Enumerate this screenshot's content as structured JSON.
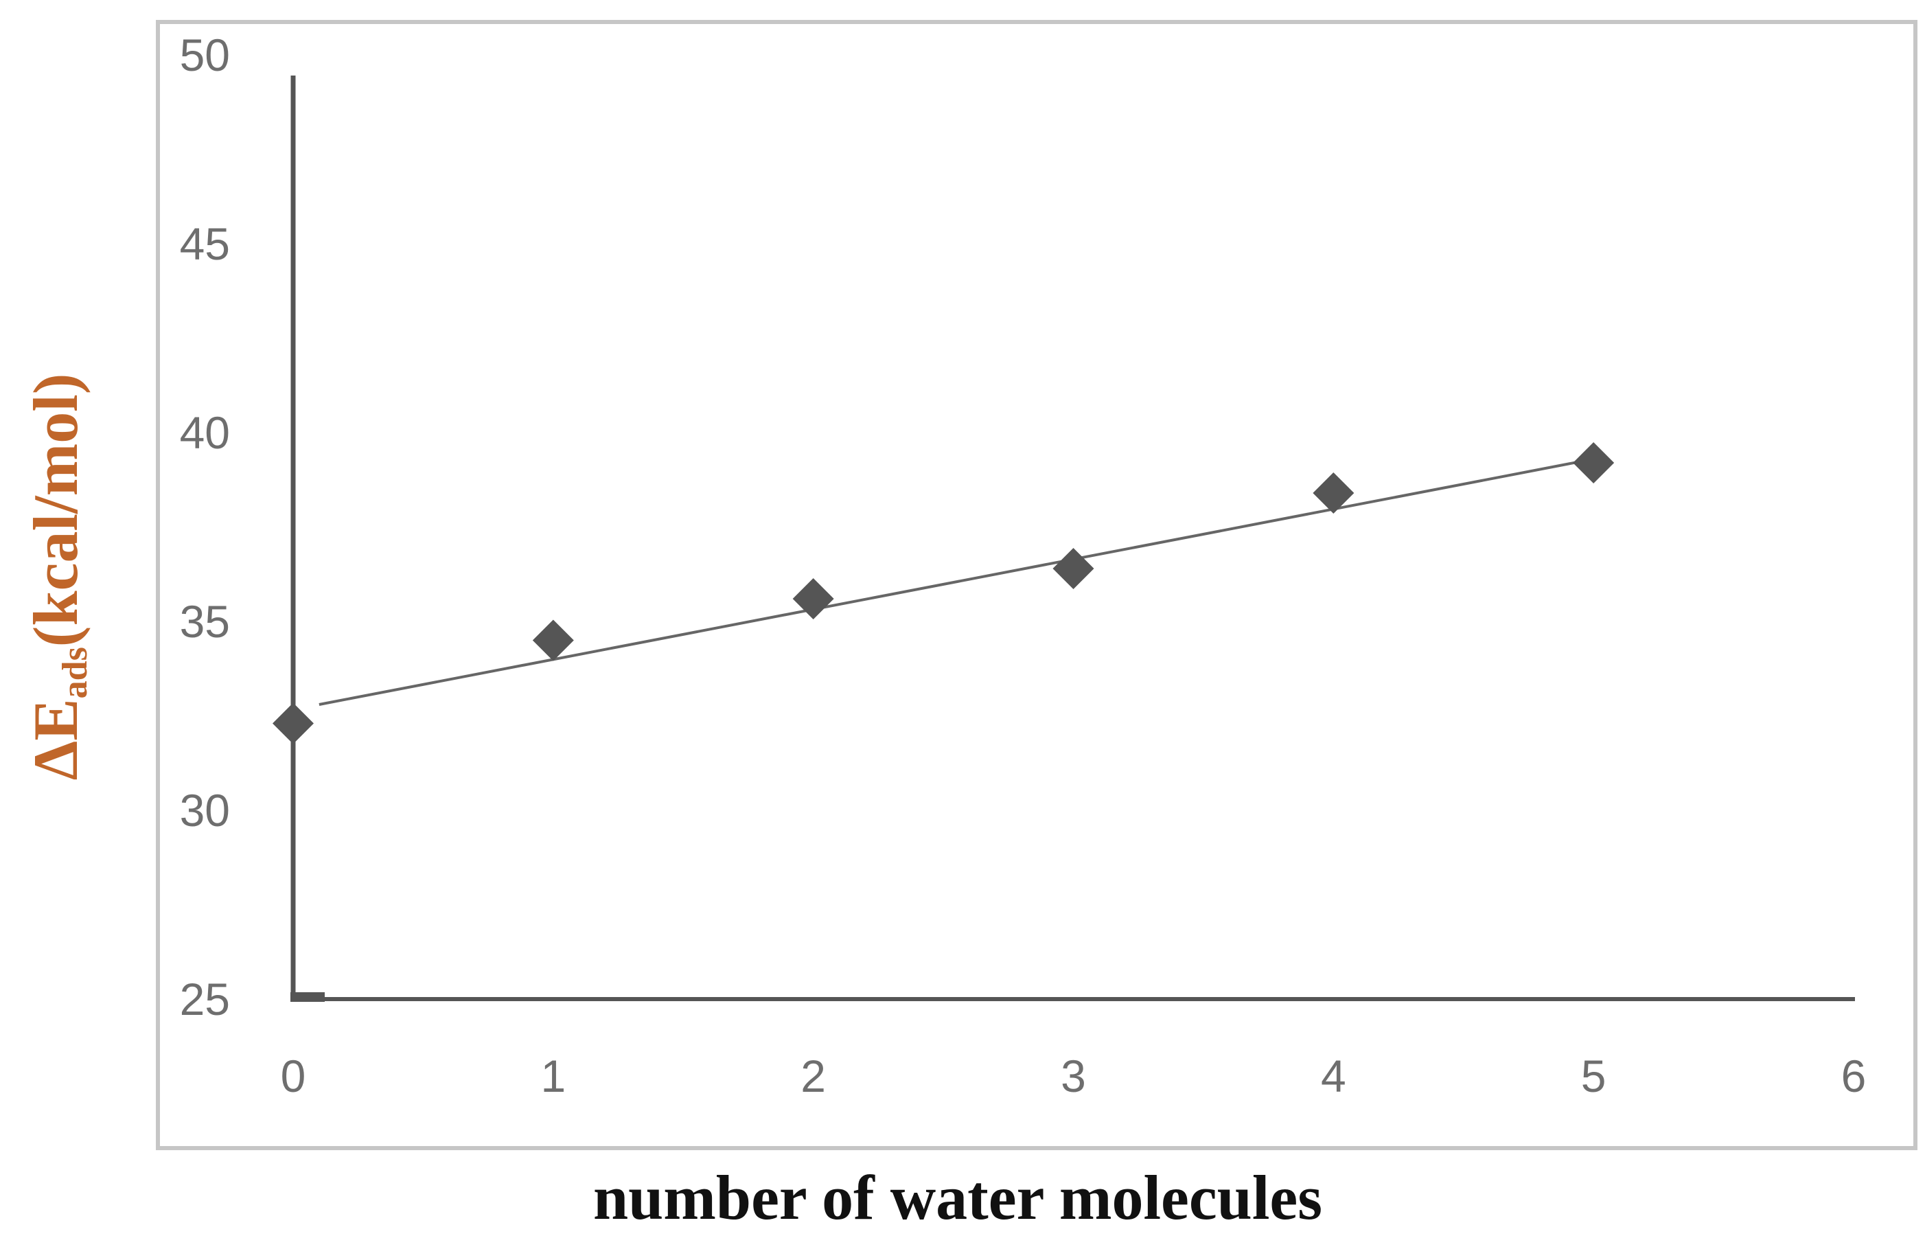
{
  "chart_data": {
    "type": "scatter",
    "title": "",
    "xlabel": "number of water molecules",
    "ylabel": {
      "prefix": "ΔE",
      "subscript": "ads",
      "suffix": "(kcal/mol)"
    },
    "xlim": [
      0,
      6
    ],
    "ylim": [
      25,
      50
    ],
    "x_ticks": [
      "0",
      "1",
      "2",
      "3",
      "4",
      "5",
      "6"
    ],
    "y_ticks": [
      "25",
      "30",
      "35",
      "40",
      "45",
      "50"
    ],
    "grid": false,
    "legend": "none",
    "series": [
      {
        "marker": "diamond",
        "x": [
          0,
          1,
          2,
          3,
          4,
          5
        ],
        "y": [
          32.3,
          34.5,
          35.6,
          36.4,
          38.4,
          39.2
        ]
      }
    ],
    "trendline": {
      "type": "linear",
      "x": [
        0.1,
        5.0
      ],
      "y": [
        32.8,
        39.3
      ]
    },
    "colors": {
      "marker": "#555555",
      "trendline": "#666666",
      "axis": "#555555",
      "frame": "#c6c6c6",
      "ylabel": "#c0662a",
      "xlabel": "#111111"
    }
  }
}
